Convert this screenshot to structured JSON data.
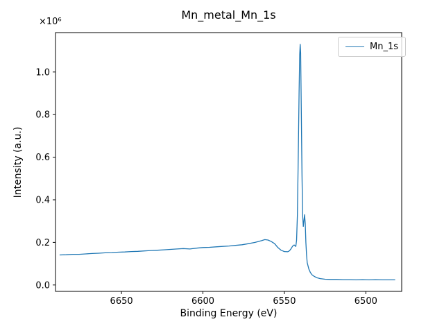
{
  "chart_data": {
    "type": "line",
    "title": "Mn_metal_Mn_1s",
    "xlabel": "Binding Energy (eV)",
    "ylabel": "Intensity (a.u.)",
    "y_offset_text": "×10⁶",
    "x_axis_reversed": true,
    "xlim": [
      6690.5,
      6478
    ],
    "ylim": [
      -0.03,
      1.185
    ],
    "xticks": [
      6650,
      6600,
      6550,
      6500
    ],
    "xtick_labels": [
      "6650",
      "6600",
      "6550",
      "6500"
    ],
    "yticks": [
      0.0,
      0.2,
      0.4,
      0.6,
      0.8,
      1.0
    ],
    "ytick_labels": [
      "0.0",
      "0.2",
      "0.4",
      "0.6",
      "0.8",
      "1.0"
    ],
    "grid": false,
    "legend_position": "upper right",
    "line_color": "#1f77b4",
    "axis_color": "#000000",
    "background_color": "#ffffff",
    "series": [
      {
        "name": "Mn_1s",
        "x": [
          6688,
          6684,
          6680,
          6676,
          6672,
          6668,
          6664,
          6660,
          6656,
          6652,
          6648,
          6644,
          6640,
          6636,
          6632,
          6628,
          6624,
          6620,
          6616,
          6612,
          6608,
          6604,
          6600,
          6596,
          6592,
          6588,
          6584,
          6580,
          6576,
          6572,
          6568,
          6564,
          6562,
          6560,
          6558,
          6556,
          6554,
          6552,
          6550,
          6548,
          6547,
          6546,
          6545,
          6544,
          6543,
          6542.5,
          6542,
          6541.5,
          6541,
          6540.6,
          6540.3,
          6540,
          6539.6,
          6539.2,
          6538.8,
          6538.4,
          6538,
          6537.6,
          6537.2,
          6536.8,
          6536.4,
          6536,
          6535,
          6534,
          6533,
          6532,
          6530,
          6528,
          6525,
          6522,
          6518,
          6514,
          6510,
          6506,
          6502,
          6498,
          6494,
          6490,
          6486,
          6482
        ],
        "y": [
          0.141,
          0.142,
          0.144,
          0.144,
          0.146,
          0.148,
          0.149,
          0.151,
          0.152,
          0.154,
          0.155,
          0.157,
          0.158,
          0.16,
          0.162,
          0.163,
          0.165,
          0.167,
          0.169,
          0.171,
          0.169,
          0.173,
          0.176,
          0.177,
          0.179,
          0.181,
          0.183,
          0.186,
          0.189,
          0.194,
          0.2,
          0.208,
          0.213,
          0.211,
          0.204,
          0.194,
          0.176,
          0.163,
          0.157,
          0.156,
          0.16,
          0.169,
          0.182,
          0.188,
          0.181,
          0.21,
          0.33,
          0.6,
          0.9,
          1.08,
          1.13,
          1.09,
          0.82,
          0.52,
          0.33,
          0.275,
          0.3,
          0.33,
          0.29,
          0.2,
          0.14,
          0.105,
          0.075,
          0.058,
          0.048,
          0.042,
          0.034,
          0.03,
          0.027,
          0.026,
          0.026,
          0.025,
          0.025,
          0.024,
          0.025,
          0.024,
          0.025,
          0.024,
          0.024,
          0.024
        ]
      }
    ],
    "y_values_unit_note": "values shown in units of 10^6 (a.u.)"
  }
}
